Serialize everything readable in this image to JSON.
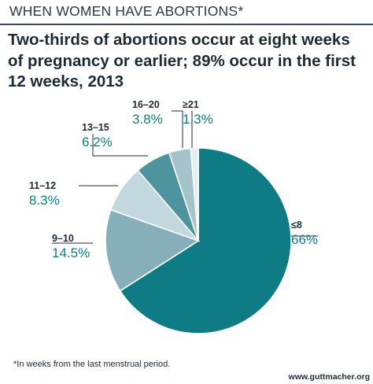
{
  "header": {
    "kicker": "WHEN WOMEN HAVE ABORTIONS*",
    "title": "Two-thirds of abortions occur at eight weeks of pregnancy or earlier; 89% occur in the first 12 weeks, 2013"
  },
  "footnote": "*In weeks from the last menstrual period.",
  "source": "www.guttmacher.org",
  "chart_data": {
    "type": "pie",
    "title": "Two-thirds of abortions occur at eight weeks of pregnancy or earlier; 89% occur in the first 12 weeks, 2013",
    "slices": [
      {
        "label": "≤8",
        "value": 66,
        "value_label": "66%",
        "color": "#0f7c85"
      },
      {
        "label": "9–10",
        "value": 14.5,
        "value_label": "14.5%",
        "color": "#86afb9"
      },
      {
        "label": "11–12",
        "value": 8.3,
        "value_label": "8.3%",
        "color": "#c3d8de"
      },
      {
        "label": "13–15",
        "value": 6.2,
        "value_label": "6.2%",
        "color": "#4d949f"
      },
      {
        "label": "16–20",
        "value": 3.8,
        "value_label": "3.8%",
        "color": "#a5c3cb"
      },
      {
        "label": "≥21",
        "value": 1.3,
        "value_label": "1.3%",
        "color": "#e3eef1"
      }
    ],
    "label_color": "#0e7c86",
    "start": "top",
    "direction": "clockwise"
  }
}
